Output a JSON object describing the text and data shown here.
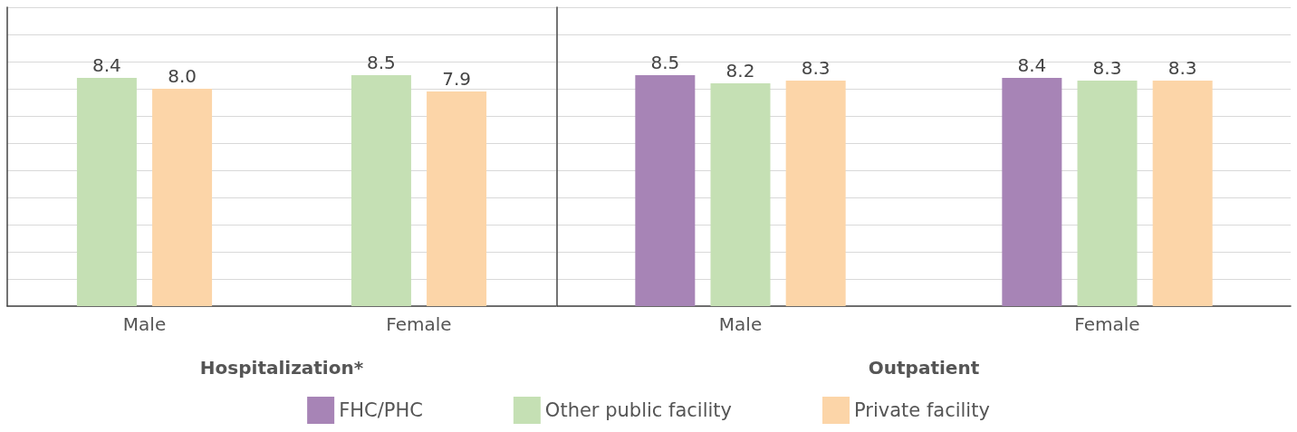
{
  "chart_data": [
    {
      "type": "bar",
      "xlabel": "Hospitalization*",
      "categories": [
        "Male",
        "Female"
      ],
      "ylim": [
        0,
        11
      ],
      "yticks": [
        {
          "value": 0,
          "label": null
        },
        {
          "value": 1,
          "label": null
        },
        {
          "value": 2,
          "label": null
        },
        {
          "value": 3,
          "label": null
        },
        {
          "value": 4,
          "label": null
        },
        {
          "value": 5,
          "label": null
        },
        {
          "value": 6,
          "label": null
        },
        {
          "value": 7,
          "label": null
        },
        {
          "value": 8,
          "label": null
        },
        {
          "value": 9,
          "label": null
        },
        {
          "value": 10,
          "label": null
        },
        {
          "value": 11,
          "label": null
        }
      ],
      "tick_labels": "x",
      "grid": "y",
      "series": [
        {
          "color": "#c5e0b4",
          "values": [
            8.4,
            8.5
          ],
          "value_labels": [
            "8.4",
            "8.5"
          ]
        },
        {
          "color": "#fcd5a8",
          "values": [
            8.0,
            7.9
          ],
          "value_labels": [
            "8.0",
            "7.9"
          ]
        }
      ]
    },
    {
      "type": "bar",
      "xlabel": "Outpatient",
      "categories": [
        "Male",
        "Female"
      ],
      "ylim": [
        0,
        11
      ],
      "yticks": [
        {
          "value": 0,
          "label": null
        },
        {
          "value": 1,
          "label": null
        },
        {
          "value": 2,
          "label": null
        },
        {
          "value": 3,
          "label": null
        },
        {
          "value": 4,
          "label": null
        },
        {
          "value": 5,
          "label": null
        },
        {
          "value": 6,
          "label": null
        },
        {
          "value": 7,
          "label": null
        },
        {
          "value": 8,
          "label": null
        },
        {
          "value": 9,
          "label": null
        },
        {
          "value": 10,
          "label": null
        },
        {
          "value": 11,
          "label": null
        }
      ],
      "tick_labels": "x",
      "grid": "y",
      "legend": "bottom",
      "series": [
        {
          "name": "FHC/PHC",
          "color": "#a784b6",
          "values": [
            8.5,
            8.4
          ],
          "value_labels": [
            "8.5",
            "8.4"
          ]
        },
        {
          "name": "Other public facility",
          "color": "#c5e0b4",
          "values": [
            8.2,
            8.3
          ],
          "value_labels": [
            "8.2",
            "8.3"
          ]
        },
        {
          "name": "Private facility",
          "color": "#fcd5a8",
          "values": [
            8.3,
            8.3
          ],
          "value_labels": [
            "8.3",
            "8.3"
          ]
        }
      ]
    }
  ]
}
